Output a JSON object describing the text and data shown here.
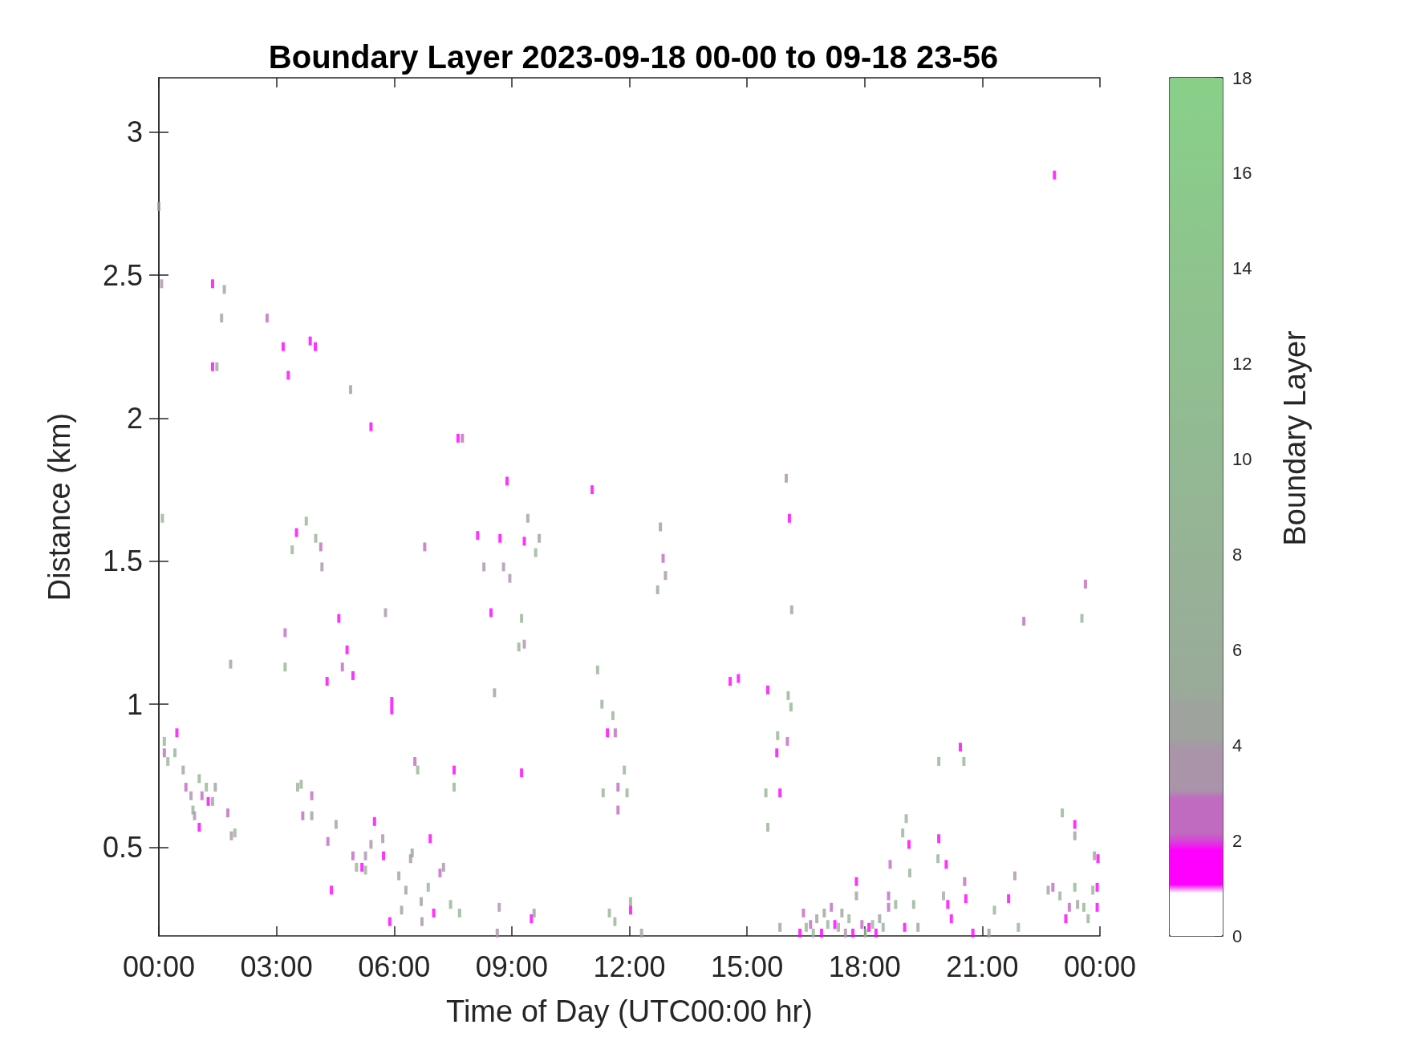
{
  "chart_data": {
    "type": "scatter",
    "title": "Boundary Layer 2023-09-18 00-00 to 09-18 23-56",
    "xlabel": "Time of Day (UTC00:00 hr)",
    "ylabel": "Distance (km)",
    "clabel": "Boundary Layer",
    "xlim": [
      0,
      24
    ],
    "xticks": [
      {
        "value": 0,
        "label": "00:00"
      },
      {
        "value": 3,
        "label": "03:00"
      },
      {
        "value": 6,
        "label": "06:00"
      },
      {
        "value": 9,
        "label": "09:00"
      },
      {
        "value": 12,
        "label": "12:00"
      },
      {
        "value": 15,
        "label": "15:00"
      },
      {
        "value": 18,
        "label": "18:00"
      },
      {
        "value": 21,
        "label": "21:00"
      },
      {
        "value": 24,
        "label": "00:00"
      }
    ],
    "ylim": [
      0.19,
      3.19
    ],
    "yticks": [
      0.5,
      1,
      1.5,
      2,
      2.5,
      3
    ],
    "clim": [
      0,
      18
    ],
    "cticks": [
      0,
      2,
      4,
      6,
      8,
      10,
      12,
      14,
      16,
      18
    ],
    "grid": false,
    "marker": "square",
    "x": [
      0.0,
      0.07,
      1.37,
      1.67,
      1.37,
      1.48,
      1.6,
      2.76,
      3.17,
      3.3,
      3.86,
      3.99,
      4.89,
      5.41,
      7.63,
      7.74,
      8.88,
      11.05,
      16.0,
      16.08,
      22.84,
      0.09,
      3.4,
      3.51,
      3.76,
      4.0,
      4.13,
      4.16,
      6.78,
      8.13,
      8.29,
      8.7,
      8.79,
      8.95,
      9.32,
      9.41,
      9.61,
      9.7,
      12.79,
      12.86,
      12.72,
      12.92,
      5.78,
      8.47,
      9.25,
      9.18,
      9.32,
      3.22,
      3.22,
      4.59,
      4.8,
      4.68,
      4.95,
      4.29,
      1.83,
      5.94,
      5.94,
      8.56,
      16.14,
      22.06,
      23.63,
      23.54,
      11.19,
      11.3,
      11.58,
      11.44,
      11.64,
      14.57,
      14.78,
      15.53,
      16.05,
      16.12,
      15.78,
      15.76,
      16.03,
      11.87,
      11.71,
      11.94,
      11.33,
      11.71,
      15.48,
      15.84,
      15.53,
      6.53,
      6.6,
      7.53,
      7.53,
      9.25,
      20.53,
      20.44,
      19.89,
      0.14,
      0.14,
      0.23,
      0.46,
      0.41,
      0.62,
      0.69,
      0.82,
      0.87,
      1.03,
      1.1,
      1.21,
      1.26,
      1.37,
      1.44,
      1.03,
      0.91,
      1.76,
      1.85,
      1.94,
      3.54,
      3.63,
      3.9,
      3.67,
      3.9,
      4.31,
      4.52,
      4.4,
      4.95,
      5.04,
      5.18,
      5.27,
      5.5,
      5.27,
      5.41,
      5.71,
      5.73,
      6.12,
      6.42,
      6.46,
      6.3,
      6.69,
      6.92,
      6.87,
      7.17,
      7.26,
      5.89,
      6.19,
      6.71,
      7.01,
      7.44,
      7.67,
      8.68,
      8.63,
      9.5,
      9.57,
      11.49,
      11.63,
      12.03,
      12.03,
      12.31,
      15.84,
      16.35,
      16.44,
      16.51,
      16.62,
      16.69,
      16.78,
      16.9,
      16.97,
      17.06,
      17.15,
      17.24,
      17.33,
      17.42,
      17.51,
      17.6,
      17.7,
      17.79,
      17.79,
      17.93,
      18.02,
      18.11,
      18.2,
      18.29,
      18.38,
      18.47,
      18.61,
      18.61,
      18.65,
      18.97,
      19.06,
      19.13,
      18.79,
      19.02,
      19.25,
      19.36,
      19.15,
      19.89,
      19.87,
      20.08,
      20.01,
      20.12,
      20.21,
      20.55,
      20.58,
      20.76,
      21.31,
      21.17,
      21.67,
      21.83,
      21.92,
      23.04,
      23.36,
      23.36,
      22.68,
      22.8,
      22.98,
      23.13,
      23.22,
      23.36,
      23.43,
      23.59,
      23.7,
      23.82,
      23.86,
      23.95,
      23.93,
      23.93
    ],
    "values": [
      2.74,
      2.47,
      2.47,
      2.45,
      2.18,
      2.18,
      2.35,
      2.35,
      2.25,
      2.15,
      2.27,
      2.25,
      2.1,
      1.97,
      1.93,
      1.93,
      1.78,
      1.75,
      1.79,
      1.65,
      2.85,
      1.65,
      1.54,
      1.6,
      1.64,
      1.58,
      1.55,
      1.48,
      1.55,
      1.59,
      1.48,
      1.58,
      1.48,
      1.44,
      1.57,
      1.65,
      1.53,
      1.58,
      1.62,
      1.51,
      1.4,
      1.45,
      1.32,
      1.32,
      1.3,
      1.2,
      1.21,
      1.25,
      1.13,
      1.3,
      1.19,
      1.13,
      1.1,
      1.08,
      1.14,
      1.01,
      0.98,
      1.04,
      1.33,
      1.29,
      1.42,
      1.3,
      1.12,
      1.0,
      0.96,
      0.9,
      0.9,
      1.08,
      1.09,
      1.05,
      1.03,
      0.99,
      0.89,
      0.83,
      0.87,
      0.77,
      0.71,
      0.69,
      0.69,
      0.63,
      0.69,
      0.69,
      0.57,
      0.8,
      0.77,
      0.77,
      0.71,
      0.76,
      0.8,
      0.85,
      0.8,
      0.87,
      0.83,
      0.8,
      0.9,
      0.83,
      0.77,
      0.71,
      0.68,
      0.63,
      0.74,
      0.68,
      0.71,
      0.66,
      0.66,
      0.71,
      0.57,
      0.61,
      0.62,
      0.54,
      0.55,
      0.71,
      0.72,
      0.68,
      0.61,
      0.61,
      0.52,
      0.58,
      0.35,
      0.47,
      0.43,
      0.43,
      0.47,
      0.59,
      0.42,
      0.51,
      0.53,
      0.47,
      0.4,
      0.46,
      0.48,
      0.35,
      0.31,
      0.53,
      0.36,
      0.41,
      0.43,
      0.24,
      0.28,
      0.24,
      0.27,
      0.3,
      0.27,
      0.29,
      0.2,
      0.25,
      0.27,
      0.27,
      0.24,
      0.31,
      0.28,
      0.2,
      0.22,
      0.2,
      0.27,
      0.22,
      0.23,
      0.2,
      0.25,
      0.2,
      0.27,
      0.23,
      0.29,
      0.23,
      0.22,
      0.27,
      0.2,
      0.25,
      0.2,
      0.38,
      0.33,
      0.23,
      0.2,
      0.22,
      0.23,
      0.2,
      0.25,
      0.22,
      0.33,
      0.29,
      0.44,
      0.55,
      0.6,
      0.51,
      0.3,
      0.22,
      0.3,
      0.22,
      0.41,
      0.53,
      0.46,
      0.44,
      0.33,
      0.3,
      0.25,
      0.38,
      0.32,
      0.2,
      0.28,
      0.2,
      0.32,
      0.4,
      0.22,
      0.62,
      0.58,
      0.54,
      0.35,
      0.36,
      0.33,
      0.25,
      0.29,
      0.36,
      0.3,
      0.29,
      0.25,
      0.35,
      0.47,
      0.46,
      0.36,
      0.29
    ],
    "cvalues": [
      3.5,
      3.5,
      1.5,
      4.5,
      1.5,
      4.5,
      4.5,
      2.5,
      1.5,
      1.5,
      1.5,
      1.5,
      4.5,
      1.5,
      1.5,
      2.5,
      1.5,
      1.5,
      3.5,
      1.5,
      1.5,
      8,
      8,
      1.5,
      8,
      8,
      2.5,
      3.5,
      2.5,
      1.5,
      3.5,
      1.5,
      3.5,
      3.5,
      1.5,
      4.5,
      8,
      4.5,
      3.5,
      2.5,
      4.5,
      3.5,
      3.5,
      1.5,
      8,
      8,
      3.5,
      2.5,
      8,
      1.5,
      1.5,
      2.5,
      1.5,
      1.5,
      4.5,
      1.5,
      1.5,
      4.5,
      4.5,
      2.5,
      2.5,
      8,
      8,
      8,
      8,
      1.5,
      2.5,
      1.5,
      1.5,
      1.5,
      8,
      8,
      8,
      1.5,
      2.5,
      8,
      2.5,
      8,
      8,
      2.5,
      8,
      1.5,
      8,
      2.5,
      8,
      1.5,
      8,
      1.5,
      8,
      1.5,
      8,
      8,
      2.5,
      8,
      1.5,
      8,
      4.5,
      2.5,
      3.5,
      8,
      8,
      2.5,
      8,
      1.5,
      4.5,
      4.5,
      1.5,
      3.5,
      2.5,
      3.5,
      8,
      8,
      8,
      2.5,
      2.5,
      4.5,
      2.5,
      4.5,
      1.5,
      2.5,
      8,
      1.5,
      3.5,
      1.5,
      8,
      3.5,
      3.5,
      1.5,
      4.5,
      3.5,
      4.5,
      4.5,
      4.5,
      1.5,
      8,
      2.5,
      3.5,
      1.5,
      4.5,
      3.5,
      1.5,
      8,
      8,
      3.5,
      3.5,
      1.5,
      4.5,
      8,
      8,
      8,
      1.5,
      4.5,
      4.5,
      1.5,
      2.5,
      8,
      2.5,
      8,
      4.5,
      1.5,
      4.5,
      8,
      2.5,
      1.5,
      8,
      4.5,
      3.5,
      8,
      1.5,
      1.5,
      4.5,
      2.5,
      8,
      1.5,
      8,
      1.5,
      4.5,
      8,
      2.5,
      2.5,
      2.5,
      8,
      8,
      1.5,
      8,
      1.5,
      8,
      4.5,
      8,
      1.5,
      8,
      1.5,
      8,
      1.5,
      1.5,
      2.5,
      1.5,
      1.5,
      8,
      4.5,
      1.5,
      3.5,
      8,
      8,
      1.5,
      4.5,
      4.5,
      2.5,
      8,
      1.5,
      2.5,
      8,
      4.5,
      8,
      8,
      8,
      4.5,
      1.5,
      1.5,
      1.5
    ]
  }
}
